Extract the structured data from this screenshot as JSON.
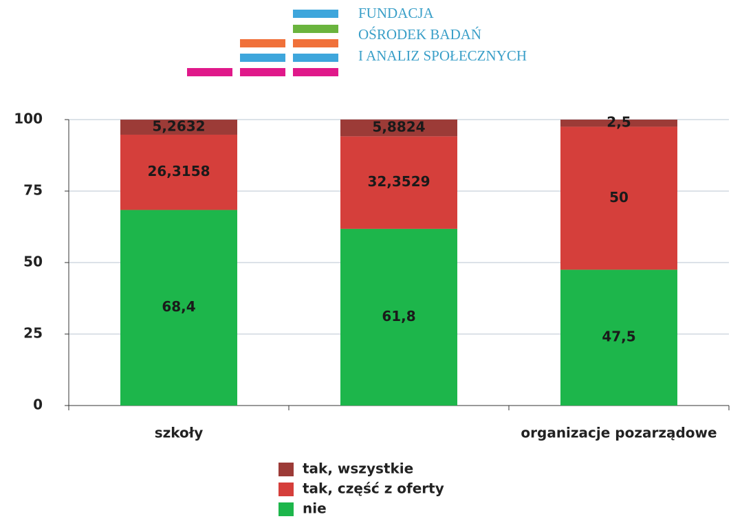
{
  "logo": {
    "lines": [
      "FUNDACJA",
      "OŚRODEK BADAŃ",
      "I ANALIZ SPOŁECZNYCH"
    ]
  },
  "chart_data": {
    "type": "stacked_bar",
    "categories": [
      "szkoły",
      null,
      "organizacje pozarządowe"
    ],
    "series": [
      {
        "name": "nie",
        "color": "#1db64b",
        "values": [
          68.4,
          61.8,
          47.5
        ],
        "value_labels": [
          "68,4",
          "61,8",
          "47,5"
        ]
      },
      {
        "name": "tak, część z oferty",
        "color": "#d53f3b",
        "values": [
          26.3158,
          32.3529,
          50
        ],
        "value_labels": [
          "26,3158",
          "32,3529",
          "50"
        ]
      },
      {
        "name": "tak, wszystkie",
        "color": "#9c3b37",
        "values": [
          5.2632,
          5.8824,
          2.5
        ],
        "value_labels": [
          "5,2632",
          "5,8824",
          "2,5"
        ]
      }
    ],
    "ylim": [
      0,
      100
    ],
    "yticks": [
      0,
      25,
      50,
      75,
      100
    ],
    "grid": true
  }
}
